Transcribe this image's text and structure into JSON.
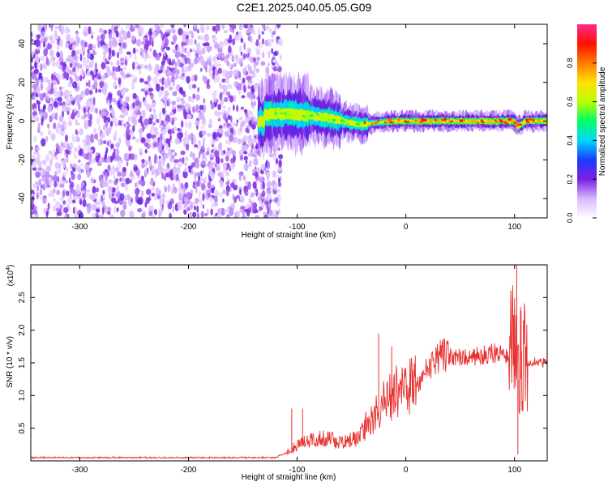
{
  "title": "C2E1.2025.040.05.05.G09",
  "chart_data": [
    {
      "type": "heatmap",
      "xlabel": "Height of straight line (km)",
      "ylabel": "Frequency (Hz)",
      "xlim": [
        -345,
        130
      ],
      "ylim": [
        -50,
        50
      ],
      "x_ticks": [
        -300,
        -200,
        -100,
        0,
        100
      ],
      "y_ticks": [
        -40,
        -20,
        0,
        20,
        40
      ],
      "colorbar": {
        "label": "Normalized spectral amplitude",
        "range": [
          0,
          1
        ],
        "ticks": [
          0.0,
          0.2,
          0.4,
          0.6,
          0.8
        ],
        "tick_labels": [
          "0.0",
          "0.2",
          "0.4",
          "0.6",
          "0.8"
        ],
        "colors": [
          "#ffffff",
          "#d8b8ff",
          "#7b1fe0",
          "#1a3cff",
          "#00d8ff",
          "#00ff66",
          "#b8ff00",
          "#ffe000",
          "#ff7a00",
          "#ff1000",
          "#ff2a8a"
        ]
      },
      "noise_region_x": [
        -345,
        -115
      ],
      "signal_track": [
        {
          "x": -130,
          "y": 3
        },
        {
          "x": -110,
          "y": 4
        },
        {
          "x": -90,
          "y": 3
        },
        {
          "x": -70,
          "y": 1.5
        },
        {
          "x": -50,
          "y": -1
        },
        {
          "x": -40,
          "y": -2
        },
        {
          "x": -30,
          "y": -1
        },
        {
          "x": -10,
          "y": 0
        },
        {
          "x": 0,
          "y": 0
        },
        {
          "x": 20,
          "y": 0
        },
        {
          "x": 50,
          "y": 0
        },
        {
          "x": 80,
          "y": 0
        },
        {
          "x": 100,
          "y": 0
        },
        {
          "x": 103,
          "y": -3
        },
        {
          "x": 110,
          "y": 0
        },
        {
          "x": 130,
          "y": 0
        }
      ]
    },
    {
      "type": "line",
      "xlabel": "Height of straight line (km)",
      "ylabel": "SNR (10 * v/v)",
      "y_multiplier": "(x10",
      "y_multiplier_exp": "4",
      "y_multiplier_close": ")",
      "xlim": [
        -345,
        130
      ],
      "ylim": [
        0,
        3.0
      ],
      "x_ticks": [
        -300,
        -200,
        -100,
        0,
        100
      ],
      "y_ticks": [
        0.5,
        1.0,
        1.5,
        2.0,
        2.5
      ],
      "y_tick_labels": [
        "0.5",
        "1.0",
        "1.5",
        "2.0",
        "2.5"
      ],
      "color": "#e8312f",
      "series_envelope": [
        {
          "x": -345,
          "y": 0.05
        },
        {
          "x": -120,
          "y": 0.05
        },
        {
          "x": -100,
          "y": 0.2
        },
        {
          "x": -90,
          "y": 0.3
        },
        {
          "x": -80,
          "y": 0.3
        },
        {
          "x": -70,
          "y": 0.3
        },
        {
          "x": -60,
          "y": 0.25
        },
        {
          "x": -45,
          "y": 0.3
        },
        {
          "x": -35,
          "y": 0.5
        },
        {
          "x": -25,
          "y": 0.7
        },
        {
          "x": -10,
          "y": 0.9
        },
        {
          "x": 0,
          "y": 0.95
        },
        {
          "x": 10,
          "y": 1.05
        },
        {
          "x": 20,
          "y": 1.3
        },
        {
          "x": 30,
          "y": 1.45
        },
        {
          "x": 40,
          "y": 1.55
        },
        {
          "x": 60,
          "y": 1.55
        },
        {
          "x": 80,
          "y": 1.6
        },
        {
          "x": 95,
          "y": 1.6
        },
        {
          "x": 100,
          "y": 1.3
        },
        {
          "x": 105,
          "y": 1.2
        },
        {
          "x": 110,
          "y": 1.45
        },
        {
          "x": 120,
          "y": 1.5
        },
        {
          "x": 130,
          "y": 1.48
        }
      ],
      "spikes": [
        {
          "x": -105,
          "y": 0.8
        },
        {
          "x": -95,
          "y": 0.8
        },
        {
          "x": -25,
          "y": 1.95
        },
        {
          "x": -13,
          "y": 1.75
        },
        {
          "x": 100,
          "y": 2.3
        },
        {
          "x": 102,
          "y": 3.0
        },
        {
          "x": 106,
          "y": 2.3
        },
        {
          "x": 103,
          "y": 0.1
        }
      ]
    }
  ]
}
